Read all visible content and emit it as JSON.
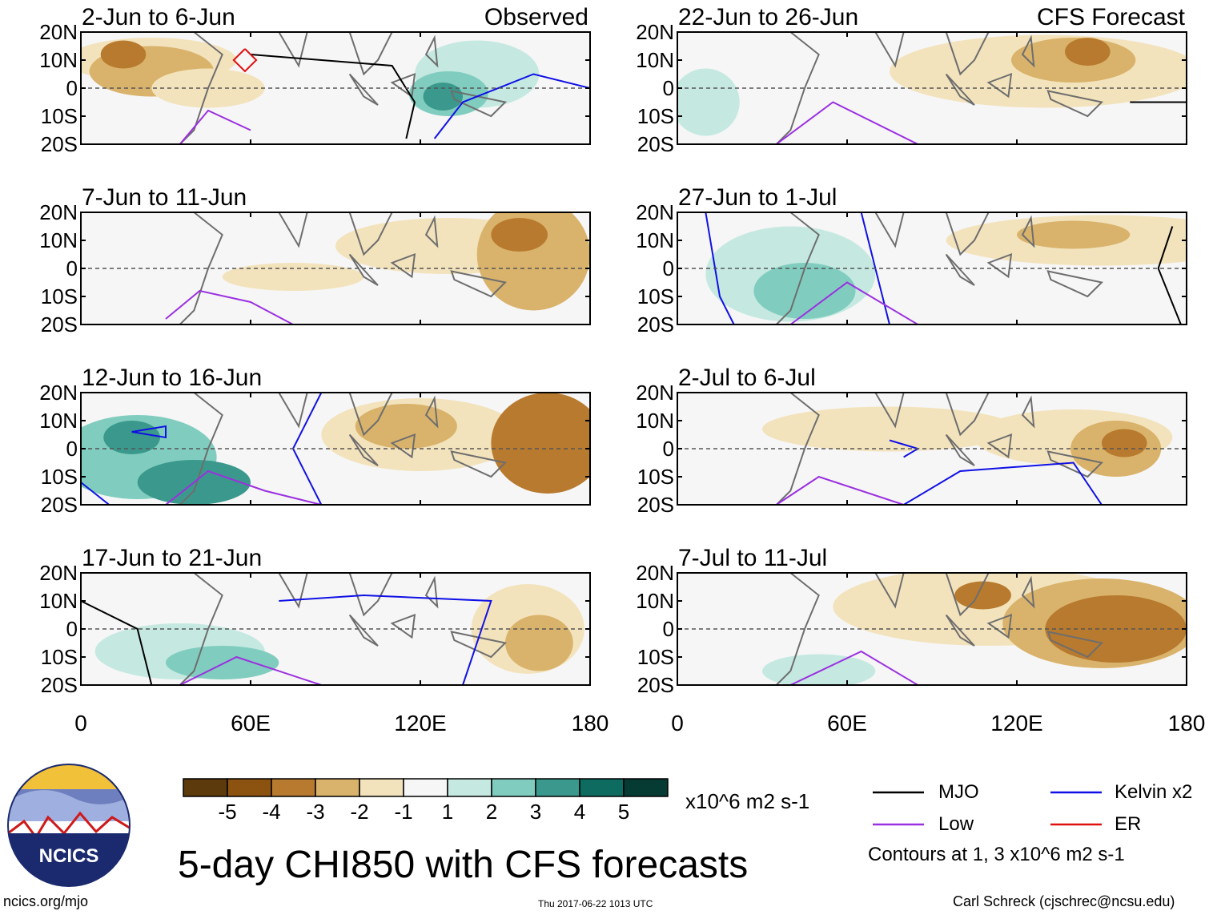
{
  "chart_data": {
    "type": "heatmap",
    "title": "5-day CHI850 with CFS forecasts",
    "units": "x10^6 m2 s-1",
    "lat_ticks": [
      "20N",
      "10N",
      "0",
      "10S",
      "20S"
    ],
    "lon_ticks": [
      "0",
      "60E",
      "120E",
      "180"
    ],
    "lon_range": [
      0,
      180
    ],
    "lat_range": [
      -20,
      20
    ],
    "columns": [
      {
        "name": "Observed",
        "label": "Observed",
        "panels": [
          "2-Jun to 6-Jun",
          "7-Jun to 11-Jun",
          "12-Jun to 16-Jun",
          "17-Jun to 21-Jun"
        ]
      },
      {
        "name": "CFS Forecast",
        "label": "CFS Forecast",
        "panels": [
          "22-Jun to 26-Jun",
          "27-Jun to 1-Jul",
          "2-Jul to 6-Jul",
          "7-Jul to 11-Jul"
        ]
      }
    ],
    "colorbar": {
      "labels": [
        "-5",
        "-4",
        "-3",
        "-2",
        "-1",
        "1",
        "2",
        "3",
        "4",
        "5"
      ],
      "colors": [
        "#5c3a0c",
        "#8c5310",
        "#b87a2e",
        "#d9b36b",
        "#f3e3bd",
        "#f6f6f6",
        "#c5e9e1",
        "#80cdbf",
        "#3a998c",
        "#0d6b60",
        "#063b34"
      ]
    },
    "legend": [
      {
        "label": "MJO",
        "color": "#000000"
      },
      {
        "label": "Kelvin x2",
        "color": "#1010e6"
      },
      {
        "label": "Low",
        "color": "#9b30e0"
      },
      {
        "label": "ER",
        "color": "#e01010"
      }
    ],
    "contour_note": "Contours at 1, 3 x10^6 m2 s-1"
  },
  "footer": {
    "logo_text": "NCICS",
    "site": "ncics.org/mjo",
    "timestamp": "Thu 2017-06-22 1013 UTC",
    "author": "Carl Schreck (cjschrec@ncsu.edu)"
  },
  "colors": {
    "brown_dark": "#b87a2e",
    "brown": "#d9b36b",
    "tan": "#f3e3bd",
    "teal_light": "#c5e9e1",
    "teal": "#80cdbf",
    "teal_dark": "#3a998c",
    "land": "#6e6e6e"
  }
}
